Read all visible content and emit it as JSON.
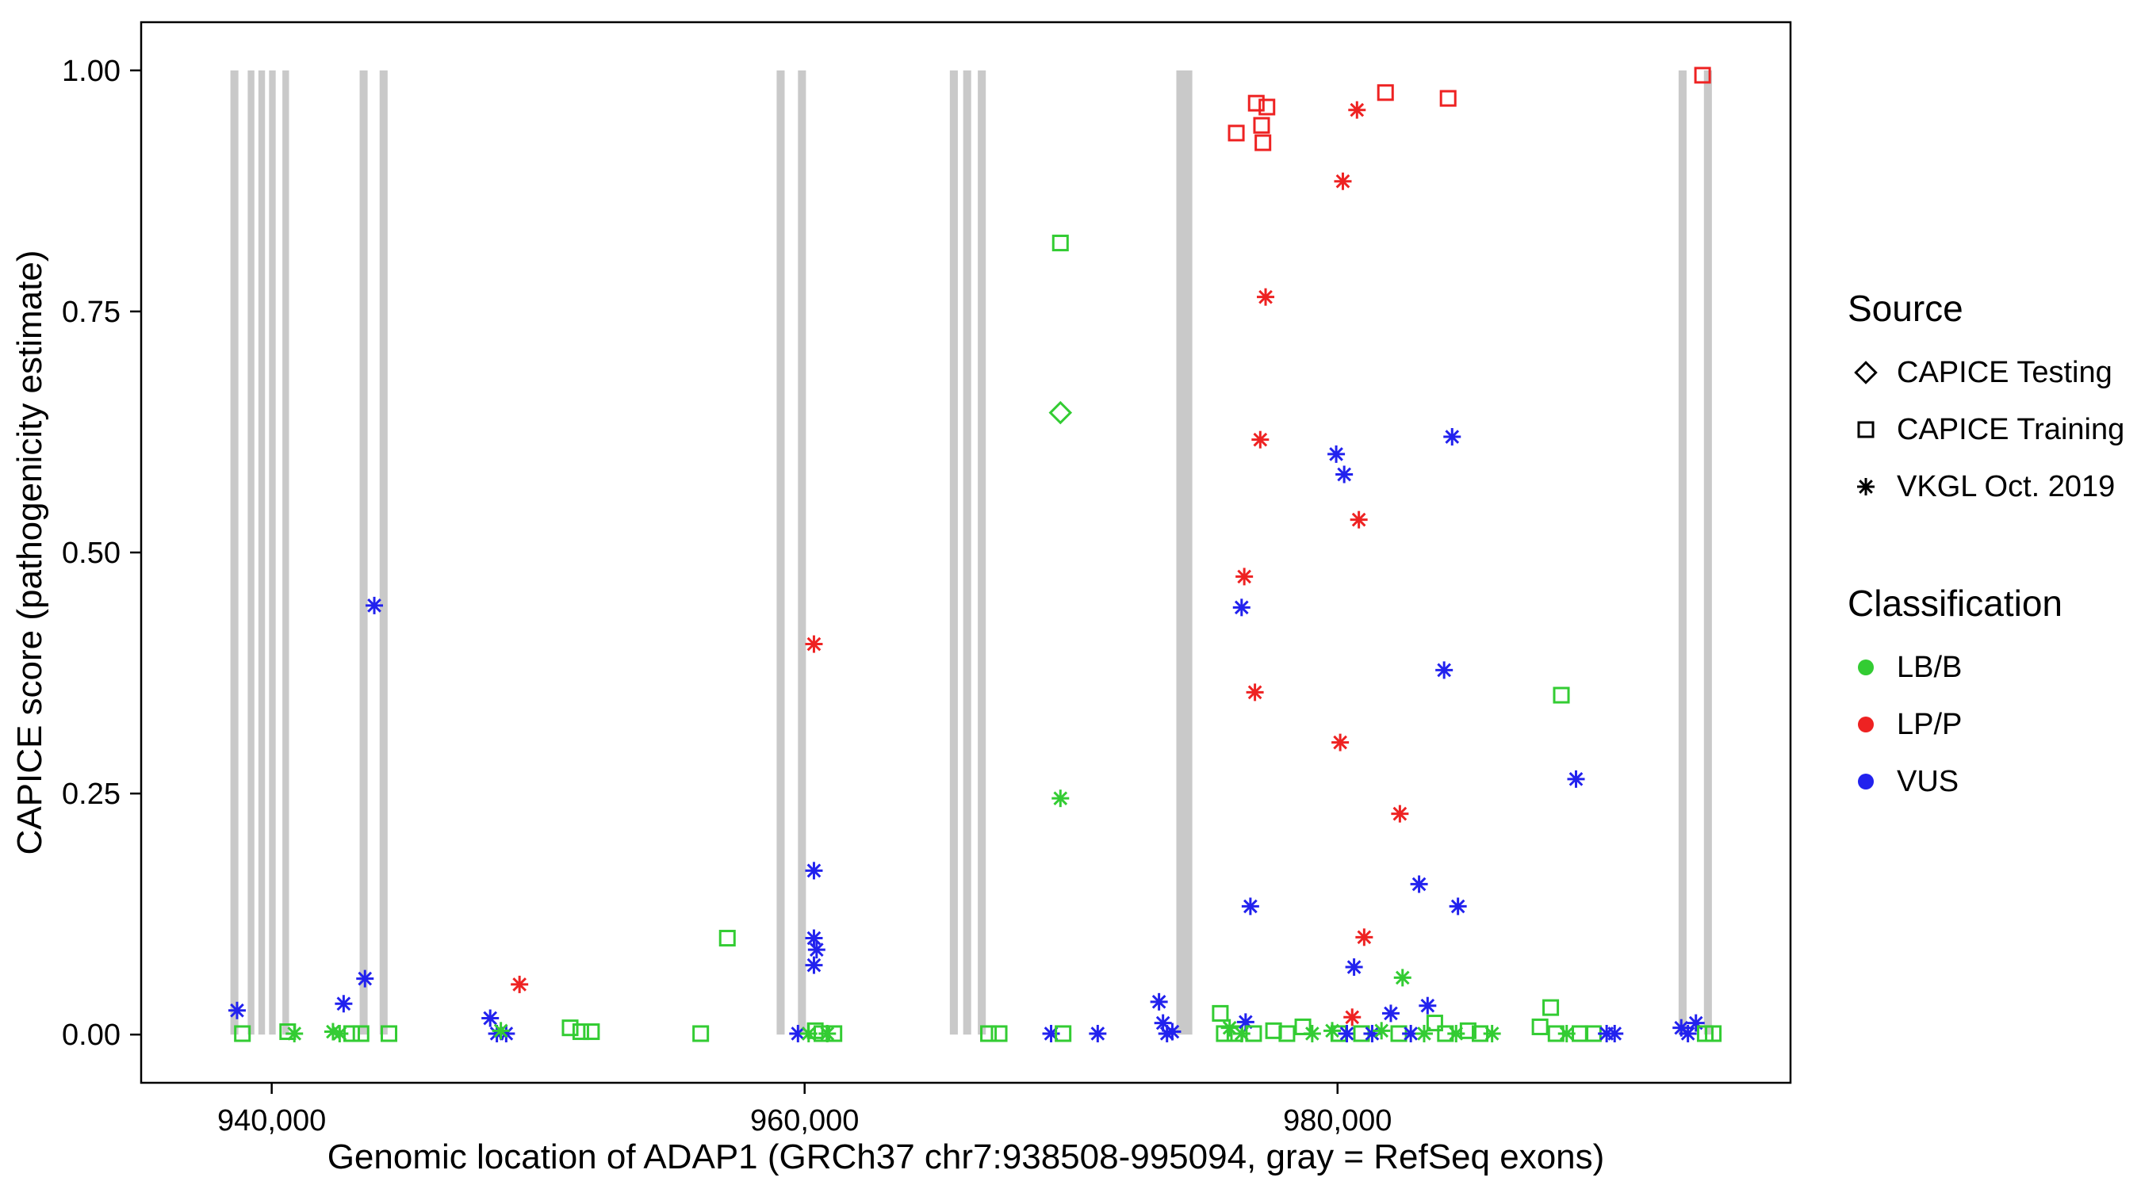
{
  "chart_data": {
    "type": "scatter",
    "title": "",
    "xlabel": "Genomic location of ADAP1 (GRCh37 chr7:938508-995094, gray = RefSeq exons)",
    "ylabel": "CAPICE score (pathogenicity estimate)",
    "xlim": [
      935100,
      997000
    ],
    "ylim": [
      -0.05,
      1.05
    ],
    "grid": false,
    "legend_position": "right",
    "x_ticks": [
      {
        "value": 940000,
        "label": "940,000"
      },
      {
        "value": 960000,
        "label": "960,000"
      },
      {
        "value": 980000,
        "label": "980,000"
      }
    ],
    "y_ticks": [
      {
        "value": 0.0,
        "label": "0.00"
      },
      {
        "value": 0.25,
        "label": "0.25"
      },
      {
        "value": 0.5,
        "label": "0.50"
      },
      {
        "value": 0.75,
        "label": "0.75"
      },
      {
        "value": 1.0,
        "label": "1.00"
      }
    ],
    "colors": {
      "LB/B": "#33cc33",
      "LP/P": "#ee2222",
      "VUS": "#2222ee",
      "exon": "#c9c9c9",
      "axis": "#000000",
      "text": "#000000"
    },
    "marker_by_source": {
      "testing": "diamond",
      "training": "square",
      "vkgl": "asterisk"
    },
    "exon_y_span": [
      0.0,
      1.0
    ],
    "exons": [
      [
        938450,
        938750
      ],
      [
        939100,
        939350
      ],
      [
        939500,
        939750
      ],
      [
        939900,
        940150
      ],
      [
        940400,
        940650
      ],
      [
        943300,
        943600
      ],
      [
        944050,
        944350
      ],
      [
        958950,
        959250
      ],
      [
        959750,
        960050
      ],
      [
        965450,
        965750
      ],
      [
        965950,
        966250
      ],
      [
        966500,
        966800
      ],
      [
        973950,
        974550
      ],
      [
        992800,
        993100
      ],
      [
        993750,
        994050
      ]
    ],
    "point_format": [
      "genomic_position",
      "capice_score",
      "source",
      "classification"
    ],
    "points": [
      [
        969600,
        0.821,
        "training",
        "LB/B"
      ],
      [
        969600,
        0.645,
        "testing",
        "LB/B"
      ],
      [
        969600,
        0.245,
        "vkgl",
        "LB/B"
      ],
      [
        943850,
        0.445,
        "vkgl",
        "VUS"
      ],
      [
        938700,
        0.025,
        "vkgl",
        "VUS"
      ],
      [
        942700,
        0.032,
        "vkgl",
        "VUS"
      ],
      [
        943500,
        0.058,
        "vkgl",
        "VUS"
      ],
      [
        949300,
        0.052,
        "vkgl",
        "LP/P"
      ],
      [
        957100,
        0.1,
        "training",
        "LB/B"
      ],
      [
        960350,
        0.405,
        "vkgl",
        "LP/P"
      ],
      [
        960350,
        0.17,
        "vkgl",
        "VUS"
      ],
      [
        960350,
        0.1,
        "vkgl",
        "VUS"
      ],
      [
        960450,
        0.088,
        "vkgl",
        "VUS"
      ],
      [
        960350,
        0.072,
        "vkgl",
        "VUS"
      ],
      [
        973300,
        0.034,
        "vkgl",
        "VUS"
      ],
      [
        976200,
        0.935,
        "training",
        "LP/P"
      ],
      [
        976950,
        0.966,
        "training",
        "LP/P"
      ],
      [
        977350,
        0.962,
        "training",
        "LP/P"
      ],
      [
        977150,
        0.943,
        "training",
        "LP/P"
      ],
      [
        977200,
        0.925,
        "training",
        "LP/P"
      ],
      [
        980730,
        0.959,
        "vkgl",
        "LP/P"
      ],
      [
        981800,
        0.977,
        "training",
        "LP/P"
      ],
      [
        984150,
        0.971,
        "training",
        "LP/P"
      ],
      [
        980200,
        0.885,
        "vkgl",
        "LP/P"
      ],
      [
        993700,
        0.995,
        "training",
        "LP/P"
      ],
      [
        977300,
        0.765,
        "vkgl",
        "LP/P"
      ],
      [
        977100,
        0.617,
        "vkgl",
        "LP/P"
      ],
      [
        979950,
        0.602,
        "vkgl",
        "VUS"
      ],
      [
        980250,
        0.581,
        "vkgl",
        "VUS"
      ],
      [
        984300,
        0.62,
        "vkgl",
        "VUS"
      ],
      [
        980800,
        0.534,
        "vkgl",
        "LP/P"
      ],
      [
        976500,
        0.475,
        "vkgl",
        "LP/P"
      ],
      [
        976400,
        0.443,
        "vkgl",
        "VUS"
      ],
      [
        976900,
        0.355,
        "vkgl",
        "LP/P"
      ],
      [
        980100,
        0.303,
        "vkgl",
        "LP/P"
      ],
      [
        984000,
        0.378,
        "vkgl",
        "VUS"
      ],
      [
        988950,
        0.265,
        "vkgl",
        "VUS"
      ],
      [
        988400,
        0.352,
        "training",
        "LB/B"
      ],
      [
        982340,
        0.229,
        "vkgl",
        "LP/P"
      ],
      [
        983060,
        0.156,
        "vkgl",
        "VUS"
      ],
      [
        984520,
        0.133,
        "vkgl",
        "VUS"
      ],
      [
        976730,
        0.133,
        "vkgl",
        "VUS"
      ],
      [
        981000,
        0.101,
        "vkgl",
        "LP/P"
      ],
      [
        980620,
        0.07,
        "vkgl",
        "VUS"
      ],
      [
        982440,
        0.059,
        "vkgl",
        "LB/B"
      ],
      [
        983380,
        0.03,
        "vkgl",
        "VUS"
      ],
      [
        938900,
        0.001,
        "training",
        "LB/B"
      ],
      [
        940600,
        0.003,
        "training",
        "LB/B"
      ],
      [
        940850,
        0.001,
        "vkgl",
        "LB/B"
      ],
      [
        942300,
        0.003,
        "vkgl",
        "LB/B"
      ],
      [
        942550,
        0.001,
        "vkgl",
        "LB/B"
      ],
      [
        943000,
        0.001,
        "training",
        "LB/B"
      ],
      [
        943350,
        0.001,
        "training",
        "LB/B"
      ],
      [
        944400,
        0.001,
        "training",
        "LB/B"
      ],
      [
        948200,
        0.017,
        "vkgl",
        "VUS"
      ],
      [
        948450,
        0.001,
        "vkgl",
        "VUS"
      ],
      [
        948800,
        0.001,
        "vkgl",
        "VUS"
      ],
      [
        948600,
        0.004,
        "vkgl",
        "LB/B"
      ],
      [
        951200,
        0.007,
        "training",
        "LB/B"
      ],
      [
        951600,
        0.003,
        "training",
        "LB/B"
      ],
      [
        952000,
        0.003,
        "training",
        "LB/B"
      ],
      [
        956100,
        0.001,
        "training",
        "LB/B"
      ],
      [
        959750,
        0.001,
        "vkgl",
        "VUS"
      ],
      [
        960150,
        0.001,
        "vkgl",
        "LB/B"
      ],
      [
        960400,
        0.004,
        "training",
        "LB/B"
      ],
      [
        960650,
        0.001,
        "training",
        "LB/B"
      ],
      [
        960850,
        0.001,
        "vkgl",
        "LB/B"
      ],
      [
        961100,
        0.001,
        "training",
        "LB/B"
      ],
      [
        966900,
        0.001,
        "training",
        "LB/B"
      ],
      [
        967300,
        0.001,
        "training",
        "LB/B"
      ],
      [
        969250,
        0.001,
        "vkgl",
        "VUS"
      ],
      [
        969700,
        0.001,
        "training",
        "LB/B"
      ],
      [
        971000,
        0.001,
        "vkgl",
        "VUS"
      ],
      [
        973450,
        0.012,
        "vkgl",
        "VUS"
      ],
      [
        973600,
        0.001,
        "vkgl",
        "VUS"
      ],
      [
        973800,
        0.003,
        "vkgl",
        "VUS"
      ],
      [
        975600,
        0.022,
        "training",
        "LB/B"
      ],
      [
        975750,
        0.001,
        "training",
        "LB/B"
      ],
      [
        975950,
        0.007,
        "vkgl",
        "LB/B"
      ],
      [
        976150,
        0.001,
        "training",
        "LB/B"
      ],
      [
        976400,
        0.001,
        "vkgl",
        "LB/B"
      ],
      [
        976550,
        0.013,
        "vkgl",
        "VUS"
      ],
      [
        976850,
        0.001,
        "training",
        "LB/B"
      ],
      [
        977600,
        0.004,
        "training",
        "LB/B"
      ],
      [
        978100,
        0.001,
        "training",
        "LB/B"
      ],
      [
        978700,
        0.008,
        "training",
        "LB/B"
      ],
      [
        979050,
        0.001,
        "vkgl",
        "LB/B"
      ],
      [
        979800,
        0.004,
        "vkgl",
        "LB/B"
      ],
      [
        980050,
        0.001,
        "training",
        "LB/B"
      ],
      [
        980350,
        0.001,
        "vkgl",
        "VUS"
      ],
      [
        980550,
        0.018,
        "vkgl",
        "LP/P"
      ],
      [
        980900,
        0.001,
        "training",
        "LB/B"
      ],
      [
        981300,
        0.001,
        "vkgl",
        "VUS"
      ],
      [
        981650,
        0.004,
        "vkgl",
        "LB/B"
      ],
      [
        982000,
        0.022,
        "vkgl",
        "VUS"
      ],
      [
        982300,
        0.001,
        "training",
        "LB/B"
      ],
      [
        982750,
        0.001,
        "vkgl",
        "VUS"
      ],
      [
        983250,
        0.001,
        "vkgl",
        "LB/B"
      ],
      [
        983650,
        0.012,
        "training",
        "LB/B"
      ],
      [
        984050,
        0.001,
        "training",
        "LB/B"
      ],
      [
        984450,
        0.001,
        "vkgl",
        "LB/B"
      ],
      [
        984900,
        0.004,
        "training",
        "LB/B"
      ],
      [
        985350,
        0.001,
        "training",
        "LB/B"
      ],
      [
        985800,
        0.001,
        "vkgl",
        "LB/B"
      ],
      [
        987600,
        0.008,
        "training",
        "LB/B"
      ],
      [
        988000,
        0.028,
        "training",
        "LB/B"
      ],
      [
        988200,
        0.001,
        "training",
        "LB/B"
      ],
      [
        988600,
        0.001,
        "vkgl",
        "LB/B"
      ],
      [
        989100,
        0.001,
        "training",
        "LB/B"
      ],
      [
        989600,
        0.001,
        "training",
        "LB/B"
      ],
      [
        990100,
        0.001,
        "vkgl",
        "VUS"
      ],
      [
        990400,
        0.001,
        "vkgl",
        "VUS"
      ],
      [
        992900,
        0.007,
        "vkgl",
        "VUS"
      ],
      [
        993150,
        0.001,
        "vkgl",
        "VUS"
      ],
      [
        993450,
        0.012,
        "vkgl",
        "VUS"
      ],
      [
        993800,
        0.001,
        "training",
        "LB/B"
      ],
      [
        994100,
        0.001,
        "training",
        "LB/B"
      ]
    ]
  },
  "legend": {
    "source": {
      "title": "Source",
      "items": [
        {
          "label": "CAPICE Testing",
          "marker": "diamond"
        },
        {
          "label": "CAPICE Training",
          "marker": "square"
        },
        {
          "label": "VKGL Oct. 2019",
          "marker": "asterisk"
        }
      ]
    },
    "classification": {
      "title": "Classification",
      "items": [
        {
          "label": "LB/B",
          "color_key": "LB/B"
        },
        {
          "label": "LP/P",
          "color_key": "LP/P"
        },
        {
          "label": "VUS",
          "color_key": "VUS"
        }
      ]
    }
  }
}
